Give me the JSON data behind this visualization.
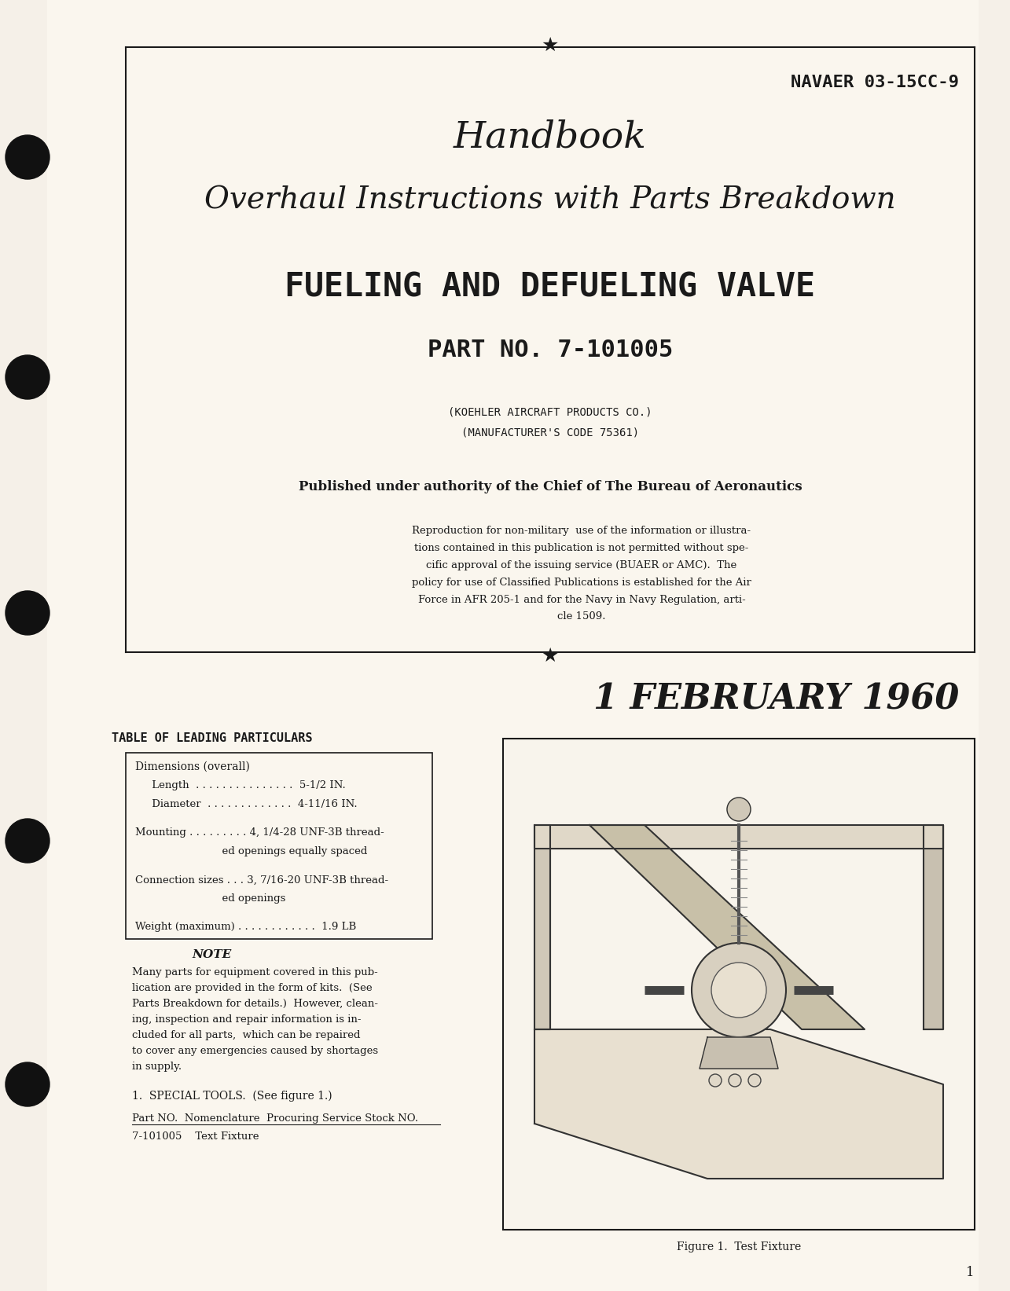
{
  "bg_color": "#f5f0e8",
  "page_bg": "#faf6ee",
  "border_color": "#1a1a1a",
  "text_color": "#1a1a1a",
  "navaer": "NAVAER 03-15CC-9",
  "title1": "Handbook",
  "title2": "Overhaul Instructions with Parts Breakdown",
  "title3": "FUELING AND DEFUELING VALVE",
  "part_no": "PART NO. 7-101005",
  "manufacturer1": "(KOEHLER AIRCRAFT PRODUCTS CO.)",
  "manufacturer2": "(MANUFACTURER'S CODE 75361)",
  "authority": "Published under authority of the Chief of The Bureau of Aeronautics",
  "legal_text": "Reproduction for non-military  use of the information or illustrations contained in this publication is not permitted without specific approval of the issuing service (BUAER or AMC).  The policy for use of Classified Publications is established for the Air Force in AFR 205-1 and for the Navy in Navy Regulation, article 1509.",
  "date": "1 FEBRUARY 1960",
  "table_title": "TABLE OF LEADING PARTICULARS",
  "table_lines": [
    "Dimensions (overall)",
    "     Length  . . . . . . . . . . . . . . . . . . .  5-1/2 IN.",
    "     Diameter  . . . . . . . . . . . . . . . . . .  4-11/16 IN.",
    "",
    "Mounting  . . . . . . . . . . .  4, 1/4-28 UNF-3B thread-",
    "                                            ed openings equally spaced",
    "",
    "Connection sizes . . . 3, 7/16-20 UNF-3B thread-",
    "                                            ed openings",
    "",
    "Weight (maximum)  . . . . . . . . . . . . . . .  1.9 LB"
  ],
  "note_title": "NOTE",
  "note_text": "Many parts for equipment covered in this publication are provided in the form of kits.  (See Parts Breakdown for details.)  However, cleaning, inspection and repair information is included for all parts,  which can be repaired to cover any emergencies caused by shortages in supply.",
  "special_tools": "1.  SPECIAL TOOLS.  (See figure 1.)",
  "col_headers": "Part NO.  Nomenclature  Procuring Service Stock NO.",
  "tool_line": "7-101005    Text Fixture",
  "figure_caption": "Figure 1.  Test Fixture",
  "page_number": "1"
}
